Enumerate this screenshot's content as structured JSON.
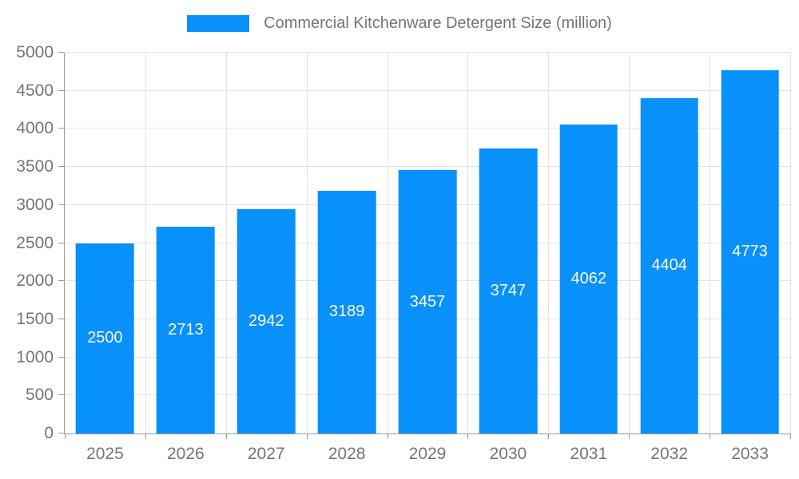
{
  "legend": {
    "label": "Commercial Kitchenware Detergent Size (million)"
  },
  "colors": {
    "bar": "#0890fb",
    "grid": "#e3e3e3",
    "axis": "#999999",
    "tick_text": "#757575",
    "bar_label_text": "#ffffff",
    "background": "#ffffff"
  },
  "chart_data": {
    "type": "bar",
    "title": "Commercial Kitchenware Detergent Size (million)",
    "categories": [
      "2025",
      "2026",
      "2027",
      "2028",
      "2029",
      "2030",
      "2031",
      "2032",
      "2033"
    ],
    "values": [
      2500,
      2713,
      2942,
      3189,
      3457,
      3747,
      4062,
      4404,
      4773
    ],
    "xlabel": "",
    "ylabel": "",
    "ylim": [
      0,
      5000
    ],
    "ytick_step": 500,
    "yticks": [
      0,
      500,
      1000,
      1500,
      2000,
      2500,
      3000,
      3500,
      4000,
      4500,
      5000
    ],
    "grid": true,
    "legend_position": "top",
    "value_labels": "inside-center"
  }
}
